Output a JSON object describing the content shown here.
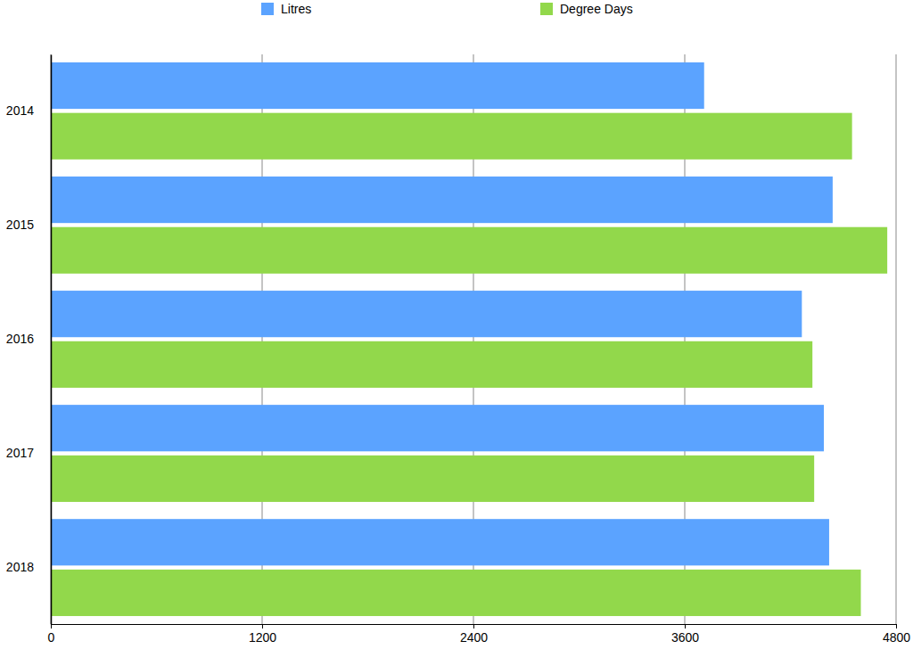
{
  "chart_data": {
    "type": "bar",
    "orientation": "horizontal",
    "categories": [
      "2014",
      "2015",
      "2016",
      "2017",
      "2018"
    ],
    "series": [
      {
        "name": "Litres",
        "color": "#5ba3ff",
        "values": [
          3710,
          4440,
          4265,
          4390,
          4420
        ]
      },
      {
        "name": "Degree Days",
        "color": "#92d84b",
        "values": [
          4550,
          4750,
          4325,
          4335,
          4600
        ]
      }
    ],
    "xlim": [
      0,
      4800
    ],
    "xticks": [
      0,
      1200,
      2400,
      3600,
      4800
    ],
    "grid": true,
    "legend": "top"
  }
}
